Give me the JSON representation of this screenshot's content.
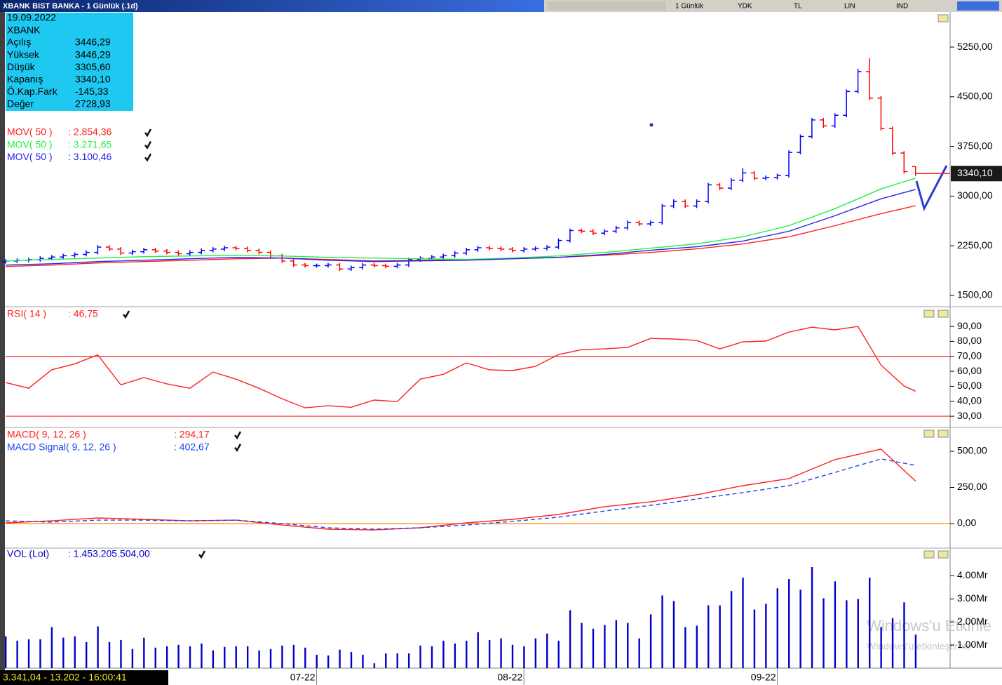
{
  "window": {
    "title": "XBANK BIST BANKA - 1 Günlük (.1d)",
    "toolbar": [
      "1 Günlük",
      "YDK",
      "TL",
      "LIN",
      "IND"
    ],
    "status": "3.341,04 - 13.202 - 16:00:41",
    "watermark": [
      "Windows'u Etkinle",
      "Windows'u etkinleştirme"
    ]
  },
  "info_box": {
    "date": "19.09.2022",
    "symbol": "XBANK",
    "rows": [
      [
        "Açılış",
        "3446,29"
      ],
      [
        "Yüksek",
        "3446,29"
      ],
      [
        "Düşük",
        "3305,60"
      ],
      [
        "Kapanış",
        "3340,10"
      ],
      [
        "Ö.Kap.Fark",
        "-145,33"
      ],
      [
        "Değer",
        "2728,93"
      ]
    ]
  },
  "chart_data": [
    {
      "type": "ohlc",
      "up_color": "#0000ff",
      "down_color": "#ff0000",
      "xlim": [
        0,
        82
      ],
      "ylim": [
        1330,
        5770
      ],
      "yticks": [
        {
          "value": 1500,
          "label": "1500,00"
        },
        {
          "value": 2250,
          "label": "2250,00"
        },
        {
          "value": 3000,
          "label": "3000,00"
        },
        {
          "value": 3750,
          "label": "3750,00"
        },
        {
          "value": 4500,
          "label": "4500,00"
        },
        {
          "value": 5250,
          "label": "5250,00"
        }
      ],
      "last_label": "3340,10",
      "x": [
        0,
        1,
        2,
        3,
        4,
        5,
        6,
        7,
        8,
        9,
        10,
        11,
        12,
        13,
        14,
        15,
        16,
        17,
        18,
        19,
        20,
        21,
        22,
        23,
        24,
        25,
        26,
        27,
        28,
        29,
        30,
        31,
        32,
        33,
        34,
        35,
        36,
        37,
        38,
        39,
        40,
        41,
        42,
        43,
        44,
        45,
        46,
        47,
        48,
        49,
        50,
        51,
        52,
        53,
        54,
        55,
        56,
        57,
        58,
        59,
        60,
        61,
        62,
        63,
        64,
        65,
        66,
        67,
        68,
        69,
        70,
        71,
        72,
        73,
        74,
        75,
        76,
        77,
        78,
        79
      ],
      "open": [
        2010,
        2020,
        2030,
        2040,
        2060,
        2080,
        2100,
        2120,
        2150,
        2230,
        2200,
        2140,
        2160,
        2190,
        2170,
        2150,
        2130,
        2150,
        2180,
        2200,
        2220,
        2210,
        2180,
        2150,
        2100,
        2020,
        1960,
        1950,
        1950,
        1960,
        1900,
        1920,
        1960,
        1950,
        1940,
        1960,
        2040,
        2060,
        2080,
        2100,
        2140,
        2190,
        2220,
        2210,
        2200,
        2180,
        2200,
        2210,
        2230,
        2330,
        2480,
        2470,
        2440,
        2470,
        2520,
        2600,
        2580,
        2600,
        2850,
        2920,
        2850,
        2920,
        3170,
        3120,
        3240,
        3350,
        3270,
        3280,
        3310,
        3660,
        3900,
        4150,
        4060,
        4220,
        4580,
        4880,
        4480,
        4020,
        3650,
        3446.29
      ],
      "high": [
        2050,
        2060,
        2070,
        2090,
        2110,
        2130,
        2150,
        2180,
        2260,
        2260,
        2230,
        2190,
        2220,
        2220,
        2200,
        2180,
        2180,
        2210,
        2230,
        2250,
        2250,
        2240,
        2210,
        2180,
        2130,
        2050,
        1990,
        1980,
        1990,
        1990,
        1950,
        1990,
        1990,
        1980,
        1990,
        2070,
        2090,
        2110,
        2130,
        2170,
        2220,
        2250,
        2250,
        2240,
        2230,
        2230,
        2240,
        2260,
        2360,
        2510,
        2510,
        2500,
        2500,
        2550,
        2630,
        2630,
        2630,
        2880,
        2950,
        2950,
        2950,
        3200,
        3200,
        3270,
        3420,
        3380,
        3310,
        3340,
        3690,
        3930,
        4180,
        4180,
        4250,
        4610,
        4920,
        5080,
        4510,
        4050,
        3680,
        3446.29
      ],
      "low": [
        1980,
        1990,
        2000,
        2010,
        2030,
        2050,
        2070,
        2090,
        2120,
        2170,
        2110,
        2110,
        2130,
        2140,
        2120,
        2100,
        2100,
        2120,
        2150,
        2170,
        2180,
        2150,
        2120,
        2070,
        1990,
        1930,
        1920,
        1920,
        1920,
        1870,
        1870,
        1890,
        1920,
        1910,
        1910,
        1930,
        2010,
        2030,
        2050,
        2070,
        2110,
        2160,
        2180,
        2170,
        2150,
        2150,
        2170,
        2180,
        2200,
        2300,
        2440,
        2410,
        2410,
        2440,
        2490,
        2550,
        2550,
        2570,
        2820,
        2820,
        2820,
        2890,
        3090,
        3090,
        3210,
        3240,
        3240,
        3250,
        3280,
        3630,
        3870,
        4030,
        4030,
        4190,
        4550,
        4450,
        3990,
        3620,
        3340,
        3305.6
      ],
      "close": [
        2020,
        2030,
        2040,
        2060,
        2080,
        2100,
        2120,
        2150,
        2230,
        2200,
        2140,
        2160,
        2190,
        2170,
        2150,
        2130,
        2150,
        2180,
        2200,
        2220,
        2210,
        2180,
        2150,
        2100,
        2020,
        1960,
        1950,
        1950,
        1960,
        1900,
        1920,
        1960,
        1950,
        1940,
        1960,
        2040,
        2060,
        2080,
        2100,
        2140,
        2190,
        2220,
        2210,
        2200,
        2180,
        2200,
        2210,
        2230,
        2330,
        2480,
        2470,
        2440,
        2470,
        2520,
        2600,
        2580,
        2600,
        2850,
        2920,
        2850,
        2920,
        3170,
        3120,
        3240,
        3350,
        3270,
        3280,
        3310,
        3660,
        3900,
        4150,
        4060,
        4220,
        4580,
        4880,
        4480,
        4020,
        3650,
        3370,
        3340.1
      ],
      "lines": {
        "x": [
          0,
          4,
          8,
          12,
          16,
          20,
          24,
          28,
          32,
          36,
          40,
          44,
          48,
          52,
          56,
          60,
          64,
          68,
          72,
          76,
          79
        ],
        "series": [
          {
            "name": "MOV( 50 )",
            "value_label": ": 2.854,36",
            "color": "#ff2020",
            "values": [
              1937,
              1958,
              1990,
              2011,
              2032,
              2054,
              2064,
              2043,
              2022,
              2032,
              2043,
              2054,
              2075,
              2107,
              2149,
              2203,
              2277,
              2384,
              2554,
              2735,
              2854.36
            ]
          },
          {
            "name": "MOV( 50 )",
            "value_label": ": 3.271,65",
            "color": "#22ee44",
            "values": [
              2022,
              2043,
              2064,
              2086,
              2096,
              2107,
              2096,
              2075,
              2064,
              2054,
              2043,
              2064,
              2096,
              2149,
              2214,
              2278,
              2384,
              2554,
              2810,
              3108,
              3271.65
            ]
          },
          {
            "name": "MOV( 50 )",
            "value_label": ": 3.100,46",
            "color": "#2222ee",
            "values": [
              1958,
              1979,
              2011,
              2032,
              2054,
              2075,
              2064,
              2032,
              2011,
              2022,
              2032,
              2054,
              2075,
              2118,
              2182,
              2235,
              2320,
              2469,
              2703,
              2959,
              3100.46
            ]
          }
        ]
      }
    },
    {
      "type": "line",
      "xlim": [
        0,
        82
      ],
      "ylim": [
        23,
        102.7
      ],
      "yticks": [
        {
          "value": 30,
          "label": "30,00"
        },
        {
          "value": 40,
          "label": "40,00"
        },
        {
          "value": 50,
          "label": "50,00"
        },
        {
          "value": 60,
          "label": "60,00"
        },
        {
          "value": 70,
          "label": "70,00"
        },
        {
          "value": 80,
          "label": "80,00"
        },
        {
          "value": 90,
          "label": "90,00"
        }
      ],
      "hlines": [
        70,
        30
      ],
      "hline_color": "#ff2020",
      "x": [
        0,
        2,
        4,
        6,
        8,
        10,
        12,
        14,
        16,
        18,
        20,
        22,
        24,
        26,
        28,
        30,
        32,
        34,
        36,
        38,
        40,
        42,
        44,
        46,
        48,
        50,
        52,
        54,
        56,
        58,
        60,
        62,
        64,
        66,
        68,
        70,
        72,
        74,
        76,
        78,
        79
      ],
      "series": [
        {
          "name": "RSI( 14 )",
          "value_label": ": 46,75",
          "color": "#ff2020",
          "values": [
            52.5,
            48.7,
            61,
            65,
            71,
            51,
            55.8,
            51.6,
            48.7,
            59.5,
            54.8,
            48.7,
            41.7,
            35.6,
            37,
            36,
            40.8,
            39.8,
            54.8,
            58,
            65.6,
            61,
            60.5,
            63.3,
            71.2,
            74.5,
            75,
            76,
            82,
            81.6,
            80.6,
            75,
            79.7,
            80.2,
            86.2,
            89.5,
            87.7,
            90,
            64.2,
            50.2,
            46.75
          ]
        }
      ]
    },
    {
      "type": "line",
      "xlim": [
        0,
        82
      ],
      "ylim": [
        -165,
        660
      ],
      "yticks": [
        {
          "value": 0,
          "label": "0,00"
        },
        {
          "value": 250,
          "label": "250,00"
        },
        {
          "value": 500,
          "label": "500,00"
        }
      ],
      "hlines": [
        0
      ],
      "hline_color": "#ff8800",
      "x": [
        0,
        4,
        8,
        12,
        16,
        20,
        24,
        28,
        32,
        36,
        40,
        44,
        48,
        52,
        56,
        60,
        64,
        68,
        72,
        76,
        79
      ],
      "series": [
        {
          "name": "MACD( 9, 12, 26 )",
          "value_label": ": 294,17",
          "color": "#ff2020",
          "values": [
            5,
            19,
            39,
            29,
            19,
            24,
            -10,
            -39,
            -44,
            -29,
            5,
            29,
            63,
            117,
            150,
            199,
            262,
            311,
            442,
            515,
            294.17
          ]
        },
        {
          "name": "MACD Signal( 9, 12, 26 )",
          "value_label": ": 402,67",
          "color": "#2244ee",
          "dash": true,
          "values": [
            19,
            10,
            24,
            24,
            19,
            24,
            0,
            -29,
            -39,
            -29,
            -10,
            15,
            44,
            87,
            126,
            170,
            214,
            262,
            354,
            447,
            402.67
          ]
        }
      ]
    },
    {
      "type": "bar",
      "xlim": [
        0,
        82
      ],
      "ylim": [
        0,
        5170000000
      ],
      "yticks": [
        {
          "value": 1000000000,
          "label": "1.00Mr"
        },
        {
          "value": 2000000000,
          "label": "2.00Mr"
        },
        {
          "value": 3000000000,
          "label": "3.00Mr"
        },
        {
          "value": 4000000000,
          "label": "4.00Mr"
        }
      ],
      "xticks": [
        {
          "value": 27,
          "label": "07-22"
        },
        {
          "value": 45,
          "label": "08-22"
        },
        {
          "value": 67,
          "label": "09-22"
        }
      ],
      "x": [
        0,
        1,
        2,
        3,
        4,
        5,
        6,
        7,
        8,
        9,
        10,
        11,
        12,
        13,
        14,
        15,
        16,
        17,
        18,
        19,
        20,
        21,
        22,
        23,
        24,
        25,
        26,
        27,
        28,
        29,
        30,
        31,
        32,
        33,
        34,
        35,
        36,
        37,
        38,
        39,
        40,
        41,
        42,
        43,
        44,
        45,
        46,
        47,
        48,
        49,
        50,
        51,
        52,
        53,
        54,
        55,
        56,
        57,
        58,
        59,
        60,
        61,
        62,
        63,
        64,
        65,
        66,
        67,
        68,
        69,
        70,
        71,
        72,
        73,
        74,
        75,
        76,
        77,
        78,
        79
      ],
      "series": [
        {
          "name": "VOL (Lot)",
          "value_label": ": 1.453.205.504,00",
          "color": "#0000cc",
          "values": [
            1380000000,
            1190000000,
            1250000000,
            1250000000,
            1780000000,
            1320000000,
            1380000000,
            1130000000,
            1810000000,
            1130000000,
            1220000000,
            830000000,
            1320000000,
            890000000,
            950000000,
            1010000000,
            950000000,
            1070000000,
            770000000,
            920000000,
            950000000,
            950000000,
            770000000,
            830000000,
            980000000,
            1010000000,
            890000000,
            580000000,
            550000000,
            800000000,
            700000000,
            580000000,
            210000000,
            640000000,
            640000000,
            640000000,
            980000000,
            950000000,
            1190000000,
            1070000000,
            1190000000,
            1560000000,
            1220000000,
            1290000000,
            1010000000,
            950000000,
            1290000000,
            1500000000,
            1190000000,
            2510000000,
            1960000000,
            1710000000,
            1870000000,
            2080000000,
            1960000000,
            1290000000,
            2330000000,
            3150000000,
            2910000000,
            1780000000,
            1840000000,
            2720000000,
            2720000000,
            3340000000,
            3920000000,
            2540000000,
            2790000000,
            3460000000,
            3860000000,
            3400000000,
            4380000000,
            3030000000,
            3760000000,
            2940000000,
            3000000000,
            3920000000,
            1780000000,
            2170000000,
            2850000000,
            1453205504
          ]
        }
      ]
    }
  ]
}
